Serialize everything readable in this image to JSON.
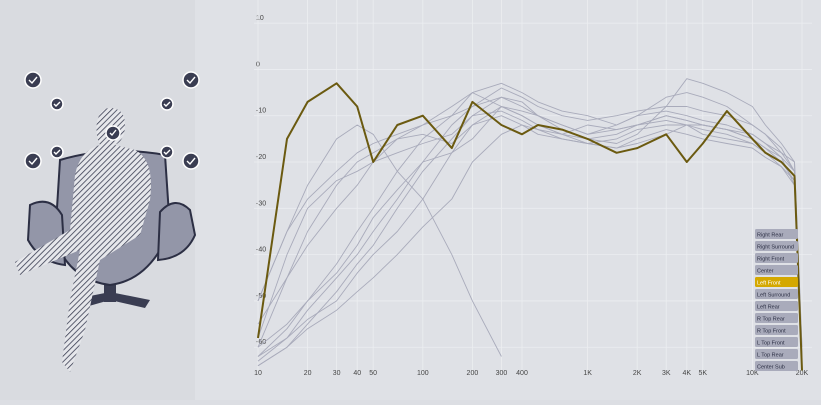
{
  "chart_data": {
    "type": "line",
    "x": [
      10,
      15,
      20,
      30,
      40,
      50,
      70,
      100,
      150,
      200,
      300,
      400,
      500,
      700,
      1000,
      1500,
      2000,
      3000,
      4000,
      5000,
      7000,
      10000,
      12000,
      15000,
      18000,
      20000
    ],
    "xscale": "log",
    "xlim": [
      10,
      20000
    ],
    "ylim": [
      -66,
      15
    ],
    "grid": true,
    "xticks": [
      10,
      20,
      30,
      40,
      50,
      100,
      200,
      300,
      400,
      {
        "value": 1000,
        "label": "1K"
      },
      {
        "value": 2000,
        "label": "2K"
      },
      {
        "value": 3000,
        "label": "3K"
      },
      {
        "value": 4000,
        "label": "4K"
      },
      {
        "value": 5000,
        "label": "5K"
      },
      {
        "value": 10000,
        "label": "10K"
      },
      {
        "value": 20000,
        "label": "20K"
      }
    ],
    "yticks": [
      10,
      0,
      -10,
      -20,
      -30,
      -40,
      -50,
      -60
    ],
    "legend": "bottom-right",
    "series": [
      {
        "name": "Right Rear",
        "color": "#a9abbb",
        "values": [
          -60,
          -55,
          -50,
          -42,
          -35,
          -30,
          -22,
          -15,
          -10,
          -5,
          -8,
          -10,
          -12,
          -14,
          -12,
          -13,
          -12,
          -10,
          -11,
          -12,
          -13,
          -14,
          -16,
          -18,
          -20,
          -60
        ]
      },
      {
        "name": "Right Surround",
        "color": "#a9abbb",
        "values": [
          -62,
          -58,
          -52,
          -45,
          -40,
          -35,
          -28,
          -20,
          -12,
          -8,
          -4,
          -6,
          -8,
          -10,
          -11,
          -10,
          -9,
          -8,
          -8,
          -9,
          -10,
          -12,
          -14,
          -17,
          -22,
          -62
        ]
      },
      {
        "name": "Right Front",
        "color": "#a9abbb",
        "values": [
          -50,
          -35,
          -28,
          -22,
          -18,
          -16,
          -14,
          -12,
          -10,
          -8,
          -6,
          -8,
          -10,
          -12,
          -14,
          -13,
          -12,
          -11,
          -12,
          -14,
          -15,
          -16,
          -18,
          -20,
          -24,
          -64
        ]
      },
      {
        "name": "Center",
        "color": "#a9abbb",
        "values": [
          -55,
          -45,
          -38,
          -30,
          -25,
          -20,
          -15,
          -12,
          -8,
          -5,
          -3,
          -5,
          -7,
          -9,
          -10,
          -12,
          -10,
          -9,
          -10,
          -11,
          -12,
          -14,
          -16,
          -19,
          -25,
          -63
        ]
      },
      {
        "name": "Left Front",
        "color": "#6b5a10",
        "highlighted": true,
        "values": [
          -58,
          -15,
          -7,
          -3,
          -8,
          -20,
          -12,
          -10,
          -17,
          -7,
          -12,
          -14,
          -12,
          -13,
          -15,
          -18,
          -17,
          -14,
          -20,
          -16,
          -9,
          -15,
          -18,
          -20,
          -23,
          -65
        ]
      },
      {
        "name": "Left Surround",
        "color": "#a9abbb",
        "values": [
          -64,
          -60,
          -55,
          -48,
          -42,
          -38,
          -30,
          -22,
          -15,
          -10,
          -6,
          -7,
          -10,
          -12,
          -14,
          -12,
          -10,
          -6,
          -5,
          -6,
          -8,
          -12,
          -14,
          -18,
          -22,
          -62
        ]
      },
      {
        "name": "Left Rear",
        "color": "#a9abbb",
        "values": [
          -63,
          -58,
          -54,
          -50,
          -44,
          -40,
          -35,
          -28,
          -18,
          -12,
          -8,
          -9,
          -10,
          -13,
          -15,
          -16,
          -14,
          -8,
          -2,
          -3,
          -5,
          -8,
          -12,
          -16,
          -20,
          -60
        ]
      },
      {
        "name": "R Top Rear",
        "color": "#a9abbb",
        "values": [
          -60,
          -45,
          -35,
          -25,
          -20,
          -18,
          -15,
          -14,
          -16,
          -12,
          -10,
          -12,
          -14,
          -15,
          -16,
          -17,
          -15,
          -13,
          -14,
          -15,
          -16,
          -17,
          -19,
          -21,
          -24,
          -64
        ]
      },
      {
        "name": "R Top Front",
        "color": "#a9abbb",
        "values": [
          -58,
          -40,
          -30,
          -24,
          -22,
          -20,
          -18,
          -16,
          -14,
          -10,
          -9,
          -11,
          -13,
          -14,
          -15,
          -14,
          -12,
          -10,
          -11,
          -12,
          -13,
          -15,
          -17,
          -19,
          -22,
          -63
        ]
      },
      {
        "name": "L Top Front",
        "color": "#a9abbb",
        "values": [
          -62,
          -56,
          -50,
          -44,
          -38,
          -32,
          -26,
          -20,
          -18,
          -15,
          -8,
          -10,
          -12,
          -14,
          -16,
          -15,
          -13,
          -12,
          -12,
          -13,
          -14,
          -16,
          -18,
          -21,
          -25,
          -65
        ]
      },
      {
        "name": "L Top Rear",
        "color": "#a9abbb",
        "values": [
          -64,
          -60,
          -56,
          -52,
          -48,
          -45,
          -40,
          -34,
          -28,
          -20,
          -14,
          -12,
          -13,
          -15,
          -16,
          -17,
          -16,
          -14,
          -12,
          -12,
          -13,
          -15,
          -17,
          -20,
          -23,
          -62
        ]
      },
      {
        "name": "Center Sub",
        "color": "#a9abbb",
        "values": [
          -50,
          -35,
          -25,
          -15,
          -12,
          -14,
          -22,
          -28,
          -40,
          -50,
          -62,
          null,
          null,
          null,
          null,
          null,
          null,
          null,
          null,
          null,
          null,
          null,
          null,
          null,
          null,
          null
        ]
      }
    ]
  }
}
